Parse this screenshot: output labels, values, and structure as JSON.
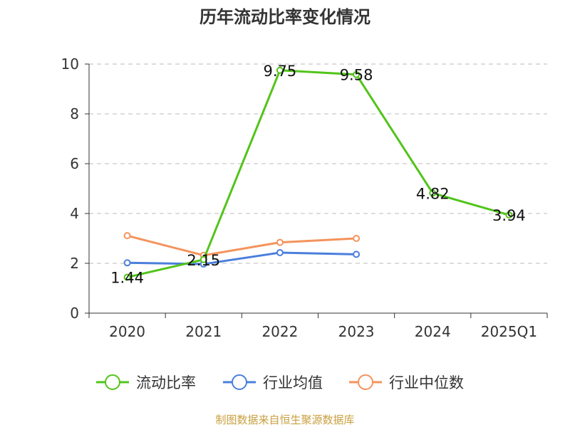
{
  "chart_data": {
    "type": "line",
    "title": "历年流动比率变化情况",
    "categories": [
      "2020",
      "2021",
      "2022",
      "2023",
      "2024",
      "2025Q1"
    ],
    "ylim": [
      0,
      10
    ],
    "yticks": [
      "0",
      "2",
      "4",
      "6",
      "8",
      "10"
    ],
    "grid": true,
    "legend_position": "bottom",
    "series": [
      {
        "name": "流动比率",
        "color": "#52c41a",
        "values": [
          1.44,
          2.15,
          9.75,
          9.58,
          4.82,
          3.94
        ],
        "labels": [
          "1.44",
          "2.15",
          "9.75",
          "9.58",
          "4.82",
          "3.94"
        ]
      },
      {
        "name": "行业均值",
        "color": "#4a7fdc",
        "values": [
          2.02,
          1.97,
          2.43,
          2.36,
          null,
          null
        ]
      },
      {
        "name": "行业中位数",
        "color": "#f4935c",
        "values": [
          3.11,
          2.32,
          2.84,
          3.0,
          null,
          null
        ]
      }
    ]
  },
  "footer": {
    "source": "制图数据来自恒生聚源数据库",
    "source_color": "#c8a040"
  }
}
